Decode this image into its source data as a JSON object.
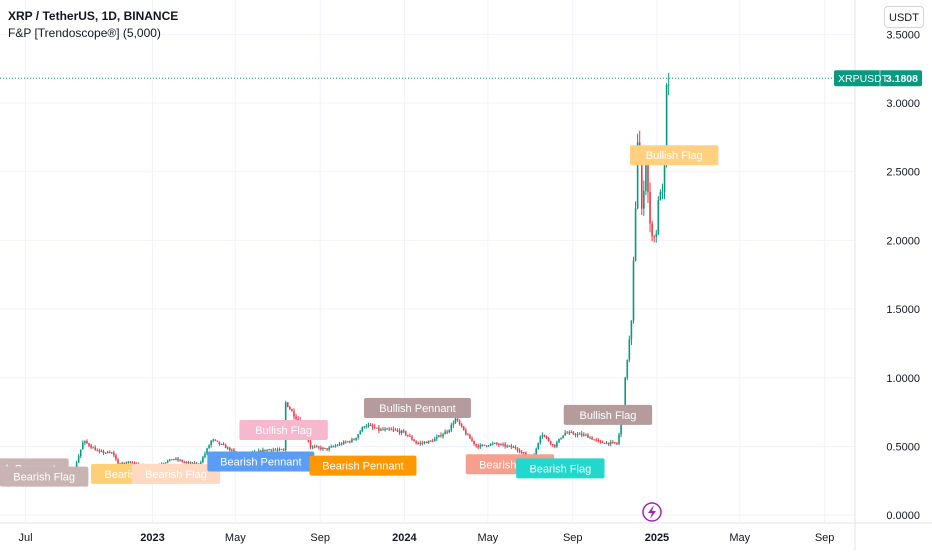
{
  "header": {
    "symbol_line": "XRP / TetherUS, 1D, BINANCE",
    "indicator_line": "F&P [Trendoscope®] (5,000)"
  },
  "currency_button": "USDT",
  "price_tag": {
    "symbol": "XRPUSDT",
    "value": "3.1808",
    "price": 3.1808,
    "color": "#089981"
  },
  "colors": {
    "up": "#089981",
    "down": "#f23645",
    "grid": "#f0f3fa",
    "axis_text": "#131722"
  },
  "chart_data": {
    "type": "candlestick",
    "x_tick_labels": [
      "Jul",
      "2023",
      "May",
      "Sep",
      "2024",
      "May",
      "Sep",
      "2025",
      "May",
      "Sep"
    ],
    "x_tick_dates": [
      "2022-07-01",
      "2023-01-01",
      "2023-05-01",
      "2023-09-01",
      "2024-01-01",
      "2024-05-01",
      "2024-09-01",
      "2025-01-01",
      "2025-05-01",
      "2025-09-01"
    ],
    "y_tick_labels": [
      "0.0000",
      "0.5000",
      "1.0000",
      "1.5000",
      "2.0000",
      "2.5000",
      "3.0000",
      "3.5000"
    ],
    "y_ticks": [
      0,
      0.5,
      1,
      1.5,
      2,
      2.5,
      3,
      3.5
    ],
    "ylim": [
      -0.05,
      3.75
    ],
    "xlim": [
      "2022-05-25",
      "2025-10-15"
    ],
    "last_price": 3.1808,
    "price_path": [
      [
        "2022-05-25",
        0.4
      ],
      [
        "2022-06-15",
        0.34
      ],
      [
        "2022-07-05",
        0.33
      ],
      [
        "2022-08-01",
        0.37
      ],
      [
        "2022-08-20",
        0.34
      ],
      [
        "2022-09-10",
        0.34
      ],
      [
        "2022-09-23",
        0.54
      ],
      [
        "2022-10-15",
        0.46
      ],
      [
        "2022-11-05",
        0.45
      ],
      [
        "2022-11-12",
        0.37
      ],
      [
        "2022-12-01",
        0.39
      ],
      [
        "2022-12-20",
        0.35
      ],
      [
        "2023-01-01",
        0.34
      ],
      [
        "2023-01-15",
        0.38
      ],
      [
        "2023-02-01",
        0.41
      ],
      [
        "2023-02-20",
        0.38
      ],
      [
        "2023-03-10",
        0.37
      ],
      [
        "2023-03-28",
        0.55
      ],
      [
        "2023-04-15",
        0.5
      ],
      [
        "2023-05-10",
        0.43
      ],
      [
        "2023-06-10",
        0.47
      ],
      [
        "2023-06-20",
        0.48
      ],
      [
        "2023-07-10",
        0.47
      ],
      [
        "2023-07-13",
        0.82
      ],
      [
        "2023-07-25",
        0.73
      ],
      [
        "2023-08-10",
        0.63
      ],
      [
        "2023-08-17",
        0.5
      ],
      [
        "2023-09-10",
        0.48
      ],
      [
        "2023-10-01",
        0.52
      ],
      [
        "2023-10-20",
        0.55
      ],
      [
        "2023-11-05",
        0.66
      ],
      [
        "2023-11-25",
        0.62
      ],
      [
        "2023-12-15",
        0.62
      ],
      [
        "2024-01-01",
        0.6
      ],
      [
        "2024-01-20",
        0.52
      ],
      [
        "2024-02-10",
        0.54
      ],
      [
        "2024-03-05",
        0.62
      ],
      [
        "2024-03-15",
        0.7
      ],
      [
        "2024-04-01",
        0.58
      ],
      [
        "2024-04-15",
        0.5
      ],
      [
        "2024-05-10",
        0.52
      ],
      [
        "2024-06-10",
        0.49
      ],
      [
        "2024-07-05",
        0.4
      ],
      [
        "2024-07-17",
        0.6
      ],
      [
        "2024-08-05",
        0.5
      ],
      [
        "2024-08-20",
        0.6
      ],
      [
        "2024-09-20",
        0.58
      ],
      [
        "2024-10-10",
        0.53
      ],
      [
        "2024-11-05",
        0.52
      ],
      [
        "2024-11-12",
        0.75
      ],
      [
        "2024-11-18",
        1.1
      ],
      [
        "2024-11-25",
        1.4
      ],
      [
        "2024-12-02",
        2.4
      ],
      [
        "2024-12-05",
        2.9
      ],
      [
        "2024-12-10",
        2.2
      ],
      [
        "2024-12-16",
        2.6
      ],
      [
        "2024-12-22",
        2.1
      ],
      [
        "2024-12-30",
        2.0
      ],
      [
        "2025-01-05",
        2.4
      ],
      [
        "2025-01-10",
        2.3
      ],
      [
        "2025-01-14",
        2.8
      ],
      [
        "2025-01-16",
        3.38
      ],
      [
        "2025-01-18",
        3.15
      ],
      [
        "2025-01-20",
        3.18
      ]
    ],
    "pattern_labels": [
      {
        "text": "Bearish Pennant",
        "color": "#c9b4b4",
        "date": "2022-06-16",
        "price": 0.34
      },
      {
        "text": "Bearish Flag",
        "color": "#c9b4b4",
        "date": "2022-07-28",
        "price": 0.28
      },
      {
        "text": "Bearish Flag",
        "color": "#ffcf75",
        "date": "2022-12-07",
        "price": 0.3
      },
      {
        "text": "Bearish Flag",
        "color": "#ffd9c2",
        "date": "2023-02-04",
        "price": 0.3
      },
      {
        "text": "Bullish Flag",
        "color": "#f7b7cc",
        "date": "2023-07-10",
        "price": 0.62
      },
      {
        "text": "Bearish Pennant",
        "color": "#5b9cf4",
        "date": "2023-06-07",
        "price": 0.39
      },
      {
        "text": "Bearish Pennant",
        "color": "#ff9800",
        "date": "2023-11-02",
        "price": 0.36
      },
      {
        "text": "Bullish Pennant",
        "color": "#b59b9b",
        "date": "2024-01-20",
        "price": 0.78
      },
      {
        "text": "Bearish Flag",
        "color": "#f5a08f",
        "date": "2024-06-02",
        "price": 0.37
      },
      {
        "text": "Bearish Flag",
        "color": "#22d8cc",
        "date": "2024-08-14",
        "price": 0.34
      },
      {
        "text": "Bullish Flag",
        "color": "#b59b9b",
        "date": "2024-10-22",
        "price": 0.73
      },
      {
        "text": "Bullish Flag",
        "color": "#ffd080",
        "date": "2025-01-26",
        "price": 2.62
      }
    ]
  }
}
